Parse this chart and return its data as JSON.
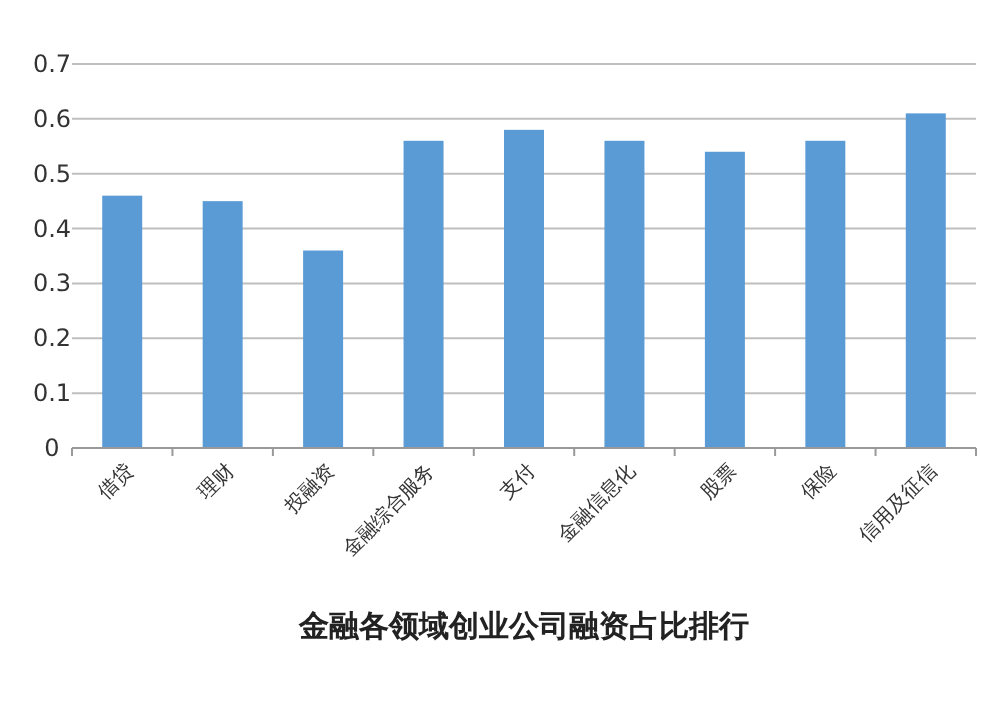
{
  "chart_data": {
    "type": "bar",
    "title": "金融各领域创业公司融资占比排行",
    "categories": [
      "借贷",
      "理财",
      "投融资",
      "金融综合服务",
      "支付",
      "金融信息化",
      "股票",
      "保险",
      "信用及征信"
    ],
    "values": [
      0.46,
      0.45,
      0.36,
      0.56,
      0.58,
      0.56,
      0.54,
      0.56,
      0.61
    ],
    "color": "#5b9bd5",
    "ylim": [
      0,
      0.7
    ],
    "yticks": [
      0,
      0.1,
      0.2,
      0.3,
      0.4,
      0.5,
      0.6,
      0.7
    ],
    "grid": "y"
  }
}
